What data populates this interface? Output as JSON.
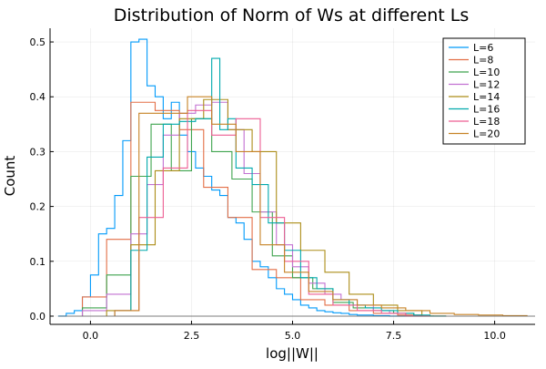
{
  "chart_data": {
    "type": "histogram",
    "title": "Distribution of Norm of Ws at different Ls",
    "xlabel": "log||W||",
    "ylabel": "Count",
    "xlim": [
      -1.0,
      11.0
    ],
    "ylim": [
      -0.015,
      0.525
    ],
    "xticks": [
      0.0,
      2.5,
      5.0,
      7.5,
      10.0
    ],
    "xtick_labels": [
      "0.0",
      "2.5",
      "5.0",
      "7.5",
      "10.0"
    ],
    "yticks": [
      0.0,
      0.1,
      0.2,
      0.3,
      0.4,
      0.5
    ],
    "ytick_labels": [
      "0.0",
      "0.1",
      "0.2",
      "0.3",
      "0.4",
      "0.5"
    ],
    "grid": true,
    "legend_position": "top-right",
    "series": [
      {
        "name": "L=6",
        "color": "#009AFA",
        "edges": [
          -0.8,
          -0.6,
          -0.4,
          -0.2,
          0.0,
          0.2,
          0.4,
          0.6,
          0.8,
          1.0,
          1.2,
          1.4,
          1.6,
          1.8,
          2.0,
          2.2,
          2.4,
          2.6,
          2.8,
          3.0,
          3.2,
          3.4,
          3.6,
          3.8,
          4.0,
          4.2,
          4.4,
          4.6,
          4.8,
          5.0,
          5.2,
          5.4,
          5.6,
          5.8,
          6.0,
          6.2,
          6.4,
          6.6,
          6.8,
          7.0,
          7.2,
          7.4,
          7.6,
          7.8,
          8.0
        ],
        "values": [
          0.0,
          0.005,
          0.01,
          0.035,
          0.075,
          0.15,
          0.16,
          0.22,
          0.32,
          0.5,
          0.505,
          0.42,
          0.4,
          0.36,
          0.39,
          0.33,
          0.3,
          0.27,
          0.255,
          0.23,
          0.22,
          0.18,
          0.17,
          0.14,
          0.1,
          0.09,
          0.07,
          0.05,
          0.04,
          0.03,
          0.02,
          0.015,
          0.01,
          0.008,
          0.006,
          0.005,
          0.003,
          0.002,
          0.002,
          0.001,
          0.001,
          0.0,
          0.0,
          0.0
        ]
      },
      {
        "name": "L=8",
        "color": "#E36F47",
        "edges": [
          -0.2,
          0.4,
          1.0,
          1.6,
          2.2,
          2.8,
          3.4,
          4.0,
          4.6,
          5.2,
          5.8,
          6.4,
          7.0,
          7.6,
          8.2,
          8.8
        ],
        "values": [
          0.035,
          0.14,
          0.39,
          0.375,
          0.34,
          0.235,
          0.18,
          0.085,
          0.07,
          0.03,
          0.02,
          0.01,
          0.005,
          0.002,
          0.0
        ]
      },
      {
        "name": "L=10",
        "color": "#3EA44E",
        "edges": [
          -0.2,
          0.4,
          1.0,
          1.5,
          2.0,
          2.5,
          3.0,
          3.5,
          4.0,
          4.5,
          5.0,
          5.5,
          6.0,
          6.5,
          7.0,
          7.5,
          8.0,
          8.5
        ],
        "values": [
          0.015,
          0.075,
          0.255,
          0.35,
          0.265,
          0.36,
          0.3,
          0.25,
          0.19,
          0.11,
          0.07,
          0.05,
          0.025,
          0.015,
          0.01,
          0.005,
          0.0
        ]
      },
      {
        "name": "L=12",
        "color": "#C271D2",
        "edges": [
          -0.2,
          0.4,
          1.0,
          1.4,
          1.8,
          2.2,
          2.6,
          3.0,
          3.4,
          3.8,
          4.2,
          4.6,
          5.0,
          5.4,
          5.8,
          6.2,
          6.6,
          7.0,
          7.4,
          7.8,
          8.2
        ],
        "values": [
          0.01,
          0.04,
          0.15,
          0.24,
          0.33,
          0.37,
          0.385,
          0.39,
          0.34,
          0.26,
          0.19,
          0.13,
          0.09,
          0.06,
          0.04,
          0.03,
          0.02,
          0.01,
          0.005,
          0.0
        ]
      },
      {
        "name": "L=14",
        "color": "#AC8D18",
        "edges": [
          0.4,
          1.0,
          1.6,
          2.2,
          2.8,
          3.4,
          4.0,
          4.6,
          5.2,
          5.8,
          6.4,
          7.0,
          7.6,
          8.2,
          8.8
        ],
        "values": [
          0.01,
          0.13,
          0.265,
          0.36,
          0.395,
          0.34,
          0.3,
          0.17,
          0.12,
          0.08,
          0.04,
          0.02,
          0.01,
          0.0
        ]
      },
      {
        "name": "L=16",
        "color": "#00A9AD",
        "edges": [
          0.6,
          1.0,
          1.4,
          1.8,
          2.2,
          2.6,
          3.0,
          3.2,
          3.4,
          3.6,
          4.0,
          4.4,
          4.8,
          5.2,
          5.6,
          6.0,
          6.4,
          6.8,
          7.2,
          7.6,
          8.0,
          8.4,
          8.8
        ],
        "values": [
          0.01,
          0.12,
          0.29,
          0.35,
          0.355,
          0.36,
          0.47,
          0.34,
          0.36,
          0.27,
          0.24,
          0.17,
          0.12,
          0.07,
          0.05,
          0.03,
          0.02,
          0.015,
          0.01,
          0.005,
          0.002,
          0.0
        ]
      },
      {
        "name": "L=18",
        "color": "#ED5D92",
        "edges": [
          0.6,
          1.2,
          1.8,
          2.4,
          3.0,
          3.6,
          4.2,
          4.8,
          5.4,
          6.0,
          6.6,
          7.2,
          7.8,
          8.4
        ],
        "values": [
          0.01,
          0.18,
          0.27,
          0.375,
          0.33,
          0.36,
          0.18,
          0.1,
          0.04,
          0.02,
          0.01,
          0.005,
          0.0
        ]
      },
      {
        "name": "L=20",
        "color": "#C68225",
        "edges": [
          0.6,
          1.2,
          1.8,
          2.4,
          3.0,
          3.6,
          4.2,
          4.8,
          5.4,
          6.0,
          6.6,
          7.2,
          7.8,
          8.4,
          9.0,
          9.6,
          10.2,
          10.8
        ],
        "values": [
          0.01,
          0.37,
          0.37,
          0.4,
          0.35,
          0.3,
          0.13,
          0.08,
          0.045,
          0.03,
          0.02,
          0.015,
          0.01,
          0.005,
          0.003,
          0.002,
          0.001
        ]
      }
    ]
  }
}
